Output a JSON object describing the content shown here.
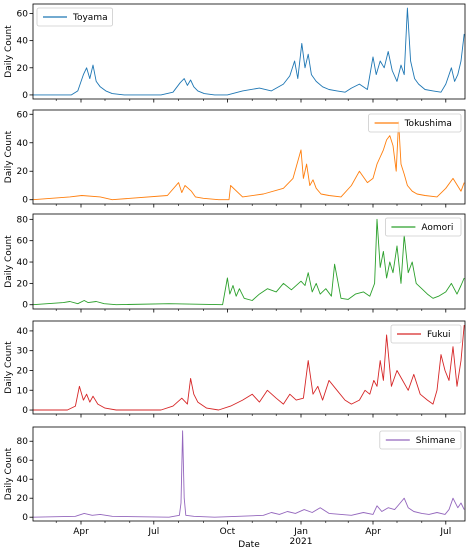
{
  "chart_data": [
    {
      "type": "line",
      "color": "#1f77b4",
      "xlabel": "",
      "ylabel": "Daily Count",
      "ylim": [
        -3,
        67
      ],
      "yticks": [
        0,
        20,
        40,
        60
      ],
      "legend": "top-left",
      "series": [
        {
          "name": "Toyama",
          "x": [
            "2020-02-01",
            "2020-03-20",
            "2020-03-28",
            "2020-04-04",
            "2020-04-08",
            "2020-04-12",
            "2020-04-16",
            "2020-04-20",
            "2020-04-25",
            "2020-05-02",
            "2020-05-10",
            "2020-05-25",
            "2020-07-10",
            "2020-07-25",
            "2020-08-03",
            "2020-08-08",
            "2020-08-12",
            "2020-08-16",
            "2020-08-20",
            "2020-08-25",
            "2020-09-02",
            "2020-09-15",
            "2020-10-01",
            "2020-10-20",
            "2020-11-10",
            "2020-11-25",
            "2020-12-10",
            "2020-12-18",
            "2020-12-24",
            "2020-12-28",
            "2021-01-02",
            "2021-01-06",
            "2021-01-10",
            "2021-01-14",
            "2021-01-20",
            "2021-01-28",
            "2021-02-05",
            "2021-02-15",
            "2021-02-25",
            "2021-03-05",
            "2021-03-15",
            "2021-03-25",
            "2021-04-01",
            "2021-04-05",
            "2021-04-10",
            "2021-04-15",
            "2021-04-20",
            "2021-04-25",
            "2021-05-01",
            "2021-05-06",
            "2021-05-10",
            "2021-05-14",
            "2021-05-18",
            "2021-05-23",
            "2021-05-28",
            "2021-06-05",
            "2021-06-15",
            "2021-06-25",
            "2021-07-01",
            "2021-07-08",
            "2021-07-12",
            "2021-07-16",
            "2021-07-20",
            "2021-07-24"
          ],
          "values": [
            0,
            0,
            3,
            15,
            20,
            12,
            22,
            10,
            6,
            3,
            1,
            0,
            0,
            2,
            9,
            12,
            7,
            11,
            6,
            3,
            1,
            0,
            0,
            3,
            5,
            3,
            8,
            14,
            25,
            12,
            38,
            20,
            30,
            15,
            10,
            6,
            4,
            3,
            2,
            5,
            8,
            4,
            28,
            15,
            25,
            20,
            32,
            18,
            10,
            22,
            15,
            64,
            25,
            12,
            8,
            4,
            3,
            2,
            8,
            20,
            10,
            15,
            25,
            45
          ]
        }
      ]
    },
    {
      "type": "line",
      "color": "#ff7f0e",
      "xlabel": "",
      "ylabel": "Daily Count",
      "ylim": [
        -3,
        63
      ],
      "yticks": [
        0,
        20,
        40,
        60
      ],
      "legend": "top-right",
      "series": [
        {
          "name": "Tokushima",
          "x": [
            "2020-02-01",
            "2020-03-18",
            "2020-04-02",
            "2020-04-25",
            "2020-05-10",
            "2020-07-18",
            "2020-08-01",
            "2020-08-05",
            "2020-08-09",
            "2020-08-13",
            "2020-08-17",
            "2020-08-22",
            "2020-09-01",
            "2020-09-20",
            "2020-10-03",
            "2020-10-05",
            "2020-10-20",
            "2020-11-15",
            "2020-12-10",
            "2020-12-22",
            "2021-01-01",
            "2021-01-04",
            "2021-01-08",
            "2021-01-12",
            "2021-01-16",
            "2021-01-20",
            "2021-01-26",
            "2021-02-05",
            "2021-02-20",
            "2021-03-05",
            "2021-03-15",
            "2021-03-25",
            "2021-04-01",
            "2021-04-06",
            "2021-04-10",
            "2021-04-14",
            "2021-04-18",
            "2021-04-22",
            "2021-04-26",
            "2021-04-30",
            "2021-05-03",
            "2021-05-06",
            "2021-05-10",
            "2021-05-14",
            "2021-05-20",
            "2021-05-26",
            "2021-06-05",
            "2021-06-20",
            "2021-07-01",
            "2021-07-10",
            "2021-07-20",
            "2021-07-24"
          ],
          "values": [
            0,
            2,
            3,
            2,
            0,
            3,
            12,
            5,
            10,
            8,
            6,
            2,
            1,
            0,
            0,
            10,
            2,
            4,
            8,
            15,
            35,
            15,
            25,
            10,
            14,
            8,
            4,
            3,
            2,
            10,
            20,
            12,
            15,
            25,
            30,
            35,
            42,
            45,
            38,
            20,
            55,
            25,
            18,
            10,
            6,
            4,
            3,
            2,
            8,
            15,
            6,
            12
          ]
        }
      ]
    },
    {
      "type": "line",
      "color": "#2ca02c",
      "xlabel": "",
      "ylabel": "Daily Count",
      "ylim": [
        -4,
        85
      ],
      "yticks": [
        0,
        20,
        40,
        60,
        80
      ],
      "legend": "top-right",
      "series": [
        {
          "name": "Aomori",
          "x": [
            "2020-02-01",
            "2020-03-10",
            "2020-03-18",
            "2020-03-28",
            "2020-04-05",
            "2020-04-10",
            "2020-04-20",
            "2020-04-30",
            "2020-05-15",
            "2020-07-20",
            "2020-09-25",
            "2020-10-01",
            "2020-10-04",
            "2020-10-08",
            "2020-10-12",
            "2020-10-16",
            "2020-10-22",
            "2020-11-01",
            "2020-11-10",
            "2020-11-20",
            "2020-12-01",
            "2020-12-10",
            "2020-12-20",
            "2021-01-01",
            "2021-01-06",
            "2021-01-10",
            "2021-01-15",
            "2021-01-20",
            "2021-01-25",
            "2021-02-01",
            "2021-02-08",
            "2021-02-12",
            "2021-02-20",
            "2021-03-01",
            "2021-03-10",
            "2021-03-20",
            "2021-03-28",
            "2021-04-03",
            "2021-04-06",
            "2021-04-10",
            "2021-04-14",
            "2021-04-18",
            "2021-04-22",
            "2021-04-26",
            "2021-05-01",
            "2021-05-06",
            "2021-05-10",
            "2021-05-15",
            "2021-05-20",
            "2021-05-25",
            "2021-06-01",
            "2021-06-08",
            "2021-06-15",
            "2021-06-22",
            "2021-07-01",
            "2021-07-08",
            "2021-07-15",
            "2021-07-20",
            "2021-07-24"
          ],
          "values": [
            0,
            2,
            3,
            1,
            4,
            2,
            3,
            1,
            0,
            1,
            0,
            25,
            10,
            18,
            8,
            15,
            6,
            4,
            10,
            15,
            12,
            20,
            14,
            22,
            18,
            30,
            12,
            20,
            10,
            15,
            8,
            38,
            6,
            5,
            10,
            12,
            8,
            20,
            80,
            35,
            50,
            25,
            40,
            30,
            55,
            20,
            65,
            30,
            40,
            20,
            15,
            10,
            6,
            8,
            12,
            20,
            10,
            18,
            25
          ]
        }
      ]
    },
    {
      "type": "line",
      "color": "#d62728",
      "xlabel": "",
      "ylabel": "Daily Count",
      "ylim": [
        -2,
        45
      ],
      "yticks": [
        0,
        10,
        20,
        30,
        40
      ],
      "legend": "top-right",
      "series": [
        {
          "name": "Fukui",
          "x": [
            "2020-02-01",
            "2020-03-15",
            "2020-03-25",
            "2020-03-30",
            "2020-04-04",
            "2020-04-08",
            "2020-04-12",
            "2020-04-16",
            "2020-04-22",
            "2020-05-01",
            "2020-05-15",
            "2020-07-10",
            "2020-07-25",
            "2020-08-05",
            "2020-08-12",
            "2020-08-16",
            "2020-08-20",
            "2020-08-25",
            "2020-09-05",
            "2020-09-20",
            "2020-10-05",
            "2020-10-20",
            "2020-11-01",
            "2020-11-10",
            "2020-11-20",
            "2020-12-01",
            "2020-12-10",
            "2020-12-18",
            "2020-12-26",
            "2021-01-04",
            "2021-01-10",
            "2021-01-16",
            "2021-01-22",
            "2021-01-28",
            "2021-02-05",
            "2021-02-15",
            "2021-02-25",
            "2021-03-05",
            "2021-03-15",
            "2021-03-22",
            "2021-03-28",
            "2021-04-02",
            "2021-04-06",
            "2021-04-10",
            "2021-04-14",
            "2021-04-18",
            "2021-04-24",
            "2021-05-01",
            "2021-05-08",
            "2021-05-15",
            "2021-05-22",
            "2021-05-30",
            "2021-06-08",
            "2021-06-15",
            "2021-06-20",
            "2021-06-25",
            "2021-06-30",
            "2021-07-05",
            "2021-07-10",
            "2021-07-15",
            "2021-07-20",
            "2021-07-24"
          ],
          "values": [
            0,
            0,
            2,
            12,
            5,
            8,
            4,
            7,
            3,
            1,
            0,
            0,
            2,
            6,
            3,
            16,
            8,
            4,
            1,
            0,
            2,
            5,
            8,
            4,
            10,
            6,
            3,
            8,
            5,
            6,
            25,
            8,
            12,
            5,
            15,
            10,
            5,
            3,
            5,
            10,
            8,
            15,
            12,
            25,
            15,
            38,
            12,
            20,
            15,
            10,
            18,
            8,
            5,
            3,
            10,
            28,
            20,
            15,
            32,
            12,
            25,
            43
          ]
        }
      ]
    },
    {
      "type": "line",
      "color": "#9467bd",
      "xlabel": "Date",
      "ylabel": "Daily Count",
      "ylim": [
        -4,
        95
      ],
      "yticks": [
        0,
        20,
        40,
        60,
        80
      ],
      "legend": "top-right",
      "x_tick_labels": [
        "Apr",
        "Jul",
        "Oct",
        "Jan",
        "Apr",
        "Jul"
      ],
      "x_year_label": "2021",
      "series": [
        {
          "name": "Shimane",
          "x": [
            "2020-02-01",
            "2020-03-25",
            "2020-04-05",
            "2020-04-15",
            "2020-04-25",
            "2020-05-10",
            "2020-07-20",
            "2020-08-02",
            "2020-08-04",
            "2020-08-06",
            "2020-08-08",
            "2020-08-10",
            "2020-08-20",
            "2020-09-15",
            "2020-10-15",
            "2020-11-15",
            "2020-11-25",
            "2020-12-05",
            "2020-12-15",
            "2020-12-25",
            "2021-01-05",
            "2021-01-15",
            "2021-01-25",
            "2021-02-05",
            "2021-02-20",
            "2021-03-05",
            "2021-03-20",
            "2021-04-01",
            "2021-04-06",
            "2021-04-12",
            "2021-04-20",
            "2021-04-28",
            "2021-05-05",
            "2021-05-10",
            "2021-05-15",
            "2021-05-22",
            "2021-06-01",
            "2021-06-10",
            "2021-06-20",
            "2021-06-30",
            "2021-07-05",
            "2021-07-10",
            "2021-07-16",
            "2021-07-20",
            "2021-07-24"
          ],
          "values": [
            0,
            1,
            4,
            2,
            3,
            1,
            0,
            2,
            15,
            91,
            20,
            2,
            1,
            0,
            1,
            2,
            5,
            3,
            6,
            4,
            8,
            5,
            10,
            4,
            3,
            2,
            5,
            3,
            12,
            6,
            10,
            8,
            15,
            20,
            10,
            6,
            4,
            3,
            5,
            3,
            8,
            20,
            10,
            15,
            8
          ]
        }
      ]
    }
  ]
}
